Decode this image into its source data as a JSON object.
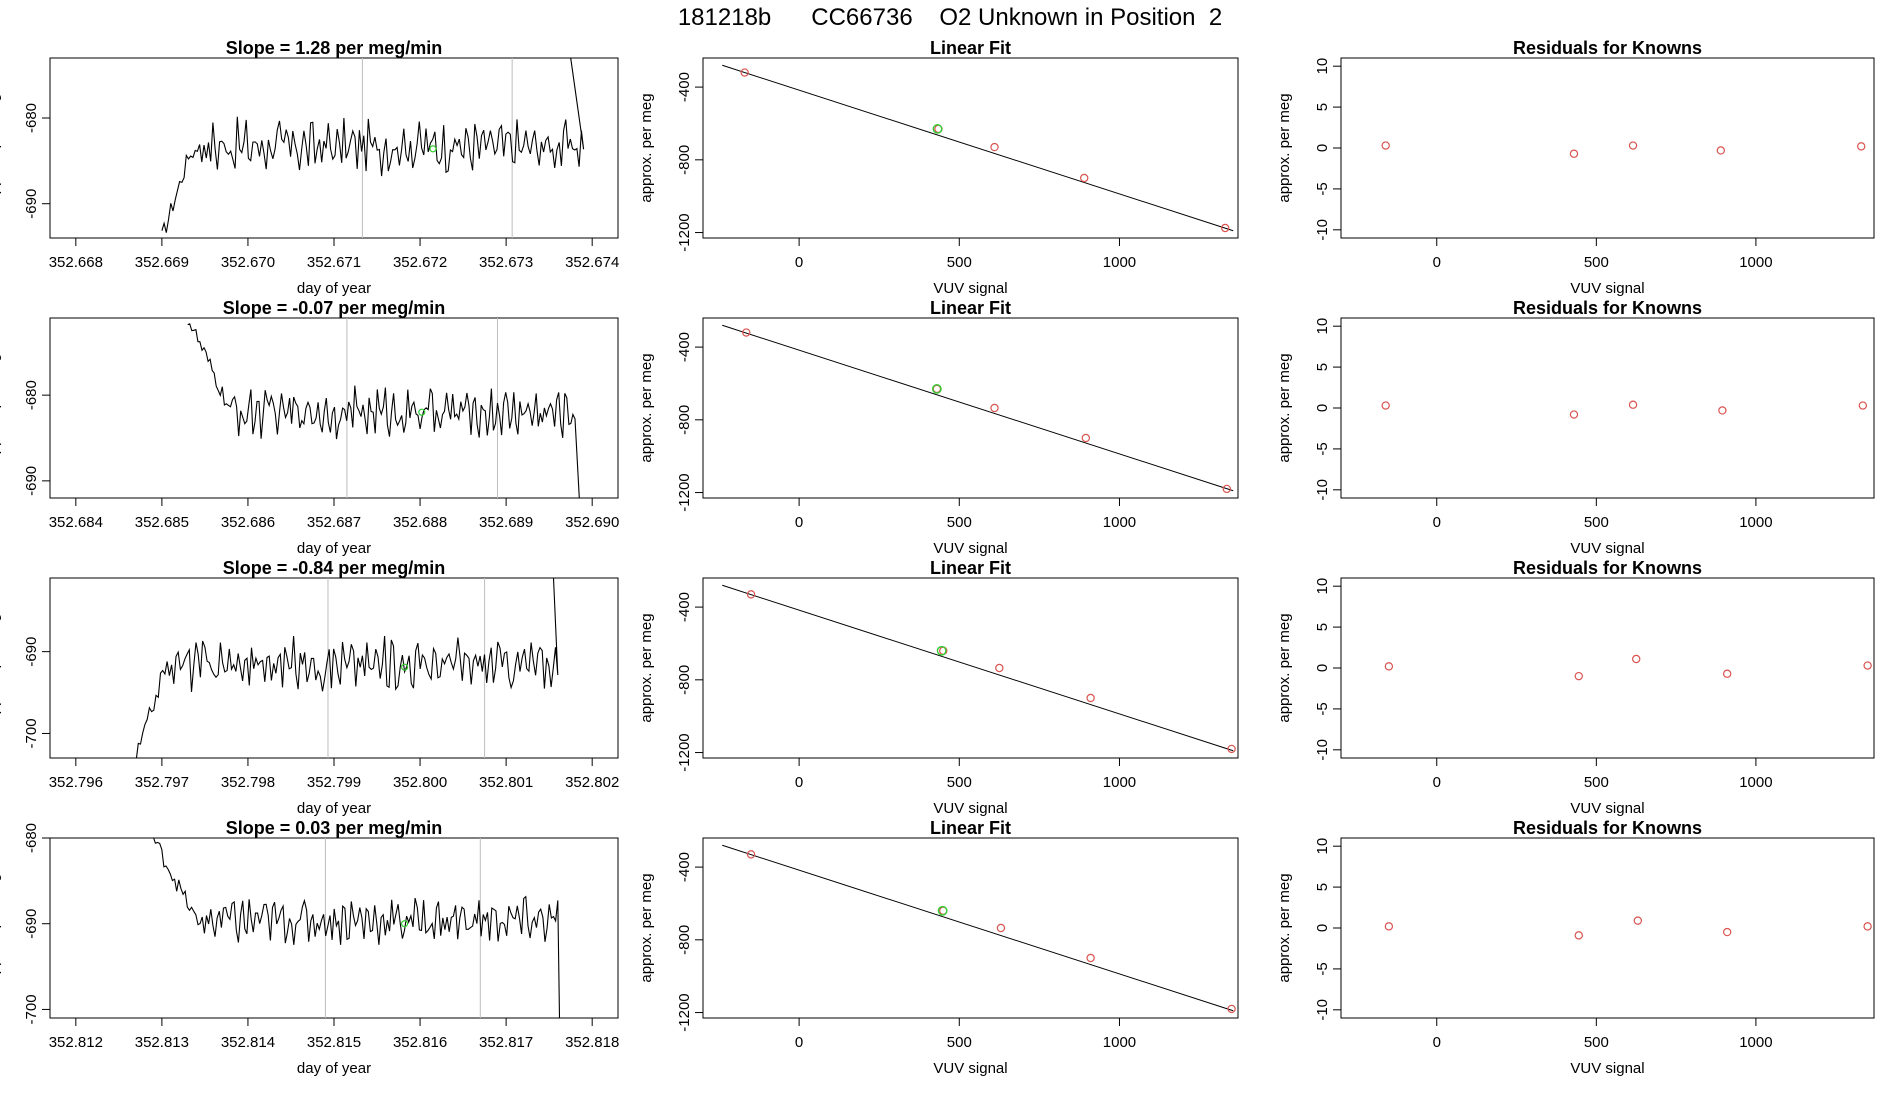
{
  "main_title": "181218b      CC66736    O2 Unknown in Position  2",
  "colors": {
    "line": "#000000",
    "known_points": "#d9534f",
    "unknown_point": "#33cc33",
    "marker_lines": "#bdbdbd"
  },
  "chart_data": [
    {
      "type": "line",
      "panel": "timeseries",
      "row": 0,
      "title": "Slope =  1.28  per meg/min",
      "xlabel": "day of year",
      "ylabel": "approx. per meg",
      "xlim": [
        352.6677,
        352.6743
      ],
      "ylim": [
        -694,
        -673
      ],
      "xticks": [
        352.668,
        352.669,
        352.67,
        352.671,
        352.672,
        352.673,
        352.674
      ],
      "xtick_labels": [
        "352.668",
        "352.669",
        "352.670",
        "352.671",
        "352.672",
        "352.673",
        "352.674"
      ],
      "yticks": [
        -680,
        -690
      ],
      "ytick_labels": [
        "-680",
        "-690"
      ],
      "vlines": [
        352.67133,
        352.67307
      ],
      "trace_x_range": [
        352.669,
        352.6739
      ],
      "trace_baseline": -683.3,
      "trace_noise": 2.2,
      "trace_start": -694,
      "trace_rise_end": 352.66935,
      "trace_end_tail": [
        352.67375,
        -673
      ],
      "unknown_point": {
        "x": 352.67215,
        "y": -683.6
      }
    },
    {
      "type": "line",
      "panel": "timeseries",
      "row": 1,
      "title": "Slope =  -0.07  per meg/min",
      "xlabel": "day of year",
      "ylabel": "approx. per meg",
      "xlim": [
        352.6837,
        352.6903
      ],
      "ylim": [
        -692,
        -671
      ],
      "xticks": [
        352.684,
        352.685,
        352.686,
        352.687,
        352.688,
        352.689,
        352.69
      ],
      "xtick_labels": [
        "352.684",
        "352.685",
        "352.686",
        "352.687",
        "352.688",
        "352.689",
        "352.690"
      ],
      "yticks": [
        -680,
        -690
      ],
      "ytick_labels": [
        "-680",
        "-690"
      ],
      "vlines": [
        352.68715,
        352.6889
      ],
      "trace_x_range": [
        352.6853,
        352.6898
      ],
      "trace_baseline": -682.0,
      "trace_noise": 2.0,
      "trace_start": -671,
      "trace_rise_end": 352.6858,
      "trace_end_tail": [
        352.68985,
        -692
      ],
      "unknown_point": {
        "x": 352.68802,
        "y": -682.0
      }
    },
    {
      "type": "line",
      "panel": "timeseries",
      "row": 2,
      "title": "Slope =  -0.84  per meg/min",
      "xlabel": "day of year",
      "ylabel": "approx. per meg",
      "xlim": [
        352.7957,
        352.8023
      ],
      "ylim": [
        -703,
        -681
      ],
      "xticks": [
        352.796,
        352.797,
        352.798,
        352.799,
        352.8,
        352.801,
        352.802
      ],
      "xtick_labels": [
        "352.796",
        "352.797",
        "352.798",
        "352.799",
        "352.800",
        "352.801",
        "352.802"
      ],
      "yticks": [
        -690,
        -700
      ],
      "ytick_labels": [
        "-690",
        "-700"
      ],
      "vlines": [
        352.79893,
        352.80075
      ],
      "trace_x_range": [
        352.7967,
        352.8016
      ],
      "trace_baseline": -691.5,
      "trace_noise": 2.2,
      "trace_start": -703,
      "trace_rise_end": 352.79705,
      "trace_end_tail": [
        352.80155,
        -681
      ],
      "unknown_point": {
        "x": 352.79982,
        "y": -691.9
      }
    },
    {
      "type": "line",
      "panel": "timeseries",
      "row": 3,
      "title": "Slope =  0.03  per meg/min",
      "xlabel": "day of year",
      "ylabel": "approx. per meg",
      "xlim": [
        352.8117,
        352.8183
      ],
      "ylim": [
        -701,
        -680
      ],
      "xticks": [
        352.812,
        352.813,
        352.814,
        352.815,
        352.816,
        352.817,
        352.818
      ],
      "xtick_labels": [
        "352.812",
        "352.813",
        "352.814",
        "352.815",
        "352.816",
        "352.817",
        "352.818"
      ],
      "yticks": [
        -680,
        -690,
        -700
      ],
      "ytick_labels": [
        "-680",
        "-690",
        "-700"
      ],
      "vlines": [
        352.8149,
        352.8167
      ],
      "trace_x_range": [
        352.8129,
        352.8176
      ],
      "trace_baseline": -689.6,
      "trace_noise": 2.0,
      "trace_start": -680,
      "trace_rise_end": 352.8134,
      "trace_end_tail": [
        352.81762,
        -701
      ],
      "unknown_point": {
        "x": 352.81582,
        "y": -690.0
      }
    },
    {
      "type": "scatter",
      "panel": "linearfit",
      "row": 0,
      "title": "Linear Fit",
      "xlabel": "VUV signal",
      "ylabel": "approx. per meg",
      "xlim": [
        -300,
        1370
      ],
      "ylim": [
        -1230,
        -240
      ],
      "xticks": [
        0,
        500,
        1000
      ],
      "xtick_labels": [
        "0",
        "500",
        "1000"
      ],
      "yticks": [
        -400,
        -800,
        -1200
      ],
      "ytick_labels": [
        "-400",
        "-800",
        "-1200"
      ],
      "known_points": [
        [
          -170,
          -320
        ],
        [
          435,
          -630
        ],
        [
          610,
          -730
        ],
        [
          890,
          -900
        ],
        [
          1330,
          -1175
        ]
      ],
      "unknown_point": [
        432,
        -630
      ],
      "fit_line": [
        [
          -240,
          -280
        ],
        [
          1355,
          -1190
        ]
      ]
    },
    {
      "type": "scatter",
      "panel": "linearfit",
      "row": 1,
      "title": "Linear Fit",
      "xlabel": "VUV signal",
      "ylabel": "approx. per meg",
      "xlim": [
        -300,
        1370
      ],
      "ylim": [
        -1230,
        -240
      ],
      "xticks": [
        0,
        500,
        1000
      ],
      "xtick_labels": [
        "0",
        "500",
        "1000"
      ],
      "yticks": [
        -400,
        -800,
        -1200
      ],
      "ytick_labels": [
        "-400",
        "-800",
        "-1200"
      ],
      "known_points": [
        [
          -165,
          -320
        ],
        [
          430,
          -630
        ],
        [
          610,
          -735
        ],
        [
          895,
          -900
        ],
        [
          1335,
          -1180
        ]
      ],
      "unknown_point": [
        430,
        -630
      ],
      "fit_line": [
        [
          -240,
          -280
        ],
        [
          1355,
          -1190
        ]
      ]
    },
    {
      "type": "scatter",
      "panel": "linearfit",
      "row": 2,
      "title": "Linear Fit",
      "xlabel": "VUV signal",
      "ylabel": "approx. per meg",
      "xlim": [
        -300,
        1370
      ],
      "ylim": [
        -1230,
        -240
      ],
      "xticks": [
        0,
        500,
        1000
      ],
      "xtick_labels": [
        "0",
        "500",
        "1000"
      ],
      "yticks": [
        -400,
        -800,
        -1200
      ],
      "ytick_labels": [
        "-400",
        "-800",
        "-1200"
      ],
      "known_points": [
        [
          -150,
          -330
        ],
        [
          450,
          -640
        ],
        [
          625,
          -735
        ],
        [
          910,
          -900
        ],
        [
          1350,
          -1180
        ]
      ],
      "unknown_point": [
        445,
        -640
      ],
      "fit_line": [
        [
          -240,
          -280
        ],
        [
          1355,
          -1190
        ]
      ]
    },
    {
      "type": "scatter",
      "panel": "linearfit",
      "row": 3,
      "title": "Linear Fit",
      "xlabel": "VUV signal",
      "ylabel": "approx. per meg",
      "xlim": [
        -300,
        1370
      ],
      "ylim": [
        -1230,
        -240
      ],
      "xticks": [
        0,
        500,
        1000
      ],
      "xtick_labels": [
        "0",
        "500",
        "1000"
      ],
      "yticks": [
        -400,
        -800,
        -1200
      ],
      "ytick_labels": [
        "-400",
        "-800",
        "-1200"
      ],
      "known_points": [
        [
          -150,
          -330
        ],
        [
          450,
          -640
        ],
        [
          630,
          -735
        ],
        [
          910,
          -900
        ],
        [
          1350,
          -1180
        ]
      ],
      "unknown_point": [
        448,
        -640
      ],
      "fit_line": [
        [
          -240,
          -280
        ],
        [
          1355,
          -1190
        ]
      ]
    },
    {
      "type": "scatter",
      "panel": "residuals",
      "row": 0,
      "title": "Residuals for Knowns",
      "xlabel": "VUV signal",
      "ylabel": "approx. per meg",
      "xlim": [
        -300,
        1370
      ],
      "ylim": [
        -11,
        11
      ],
      "xticks": [
        0,
        500,
        1000
      ],
      "xtick_labels": [
        "0",
        "500",
        "1000"
      ],
      "yticks": [
        10,
        5,
        0,
        -5,
        -10
      ],
      "ytick_labels": [
        "10",
        "5",
        "0",
        "-5",
        "-10"
      ],
      "points": [
        [
          -160,
          0.3
        ],
        [
          430,
          -0.7
        ],
        [
          615,
          0.3
        ],
        [
          890,
          -0.3
        ],
        [
          1330,
          0.2
        ]
      ]
    },
    {
      "type": "scatter",
      "panel": "residuals",
      "row": 1,
      "title": "Residuals for Knowns",
      "xlabel": "VUV signal",
      "ylabel": "approx. per meg",
      "xlim": [
        -300,
        1370
      ],
      "ylim": [
        -11,
        11
      ],
      "xticks": [
        0,
        500,
        1000
      ],
      "xtick_labels": [
        "0",
        "500",
        "1000"
      ],
      "yticks": [
        10,
        5,
        0,
        -5,
        -10
      ],
      "ytick_labels": [
        "10",
        "5",
        "0",
        "-5",
        "-10"
      ],
      "points": [
        [
          -160,
          0.3
        ],
        [
          430,
          -0.8
        ],
        [
          615,
          0.4
        ],
        [
          895,
          -0.3
        ],
        [
          1335,
          0.3
        ]
      ]
    },
    {
      "type": "scatter",
      "panel": "residuals",
      "row": 2,
      "title": "Residuals for Knowns",
      "xlabel": "VUV signal",
      "ylabel": "approx. per meg",
      "xlim": [
        -300,
        1370
      ],
      "ylim": [
        -11,
        11
      ],
      "xticks": [
        0,
        500,
        1000
      ],
      "xtick_labels": [
        "0",
        "500",
        "1000"
      ],
      "yticks": [
        10,
        5,
        0,
        -5,
        -10
      ],
      "ytick_labels": [
        "10",
        "5",
        "0",
        "-5",
        "-10"
      ],
      "points": [
        [
          -150,
          0.2
        ],
        [
          445,
          -1.0
        ],
        [
          625,
          1.1
        ],
        [
          910,
          -0.7
        ],
        [
          1350,
          0.3
        ]
      ]
    },
    {
      "type": "scatter",
      "panel": "residuals",
      "row": 3,
      "title": "Residuals for Knowns",
      "xlabel": "VUV signal",
      "ylabel": "approx. per meg",
      "xlim": [
        -300,
        1370
      ],
      "ylim": [
        -11,
        11
      ],
      "xticks": [
        0,
        500,
        1000
      ],
      "xtick_labels": [
        "0",
        "500",
        "1000"
      ],
      "yticks": [
        10,
        5,
        0,
        -5,
        -10
      ],
      "ytick_labels": [
        "10",
        "5",
        "0",
        "-5",
        "-10"
      ],
      "points": [
        [
          -150,
          0.2
        ],
        [
          445,
          -0.9
        ],
        [
          630,
          0.9
        ],
        [
          910,
          -0.5
        ],
        [
          1350,
          0.2
        ]
      ]
    }
  ]
}
